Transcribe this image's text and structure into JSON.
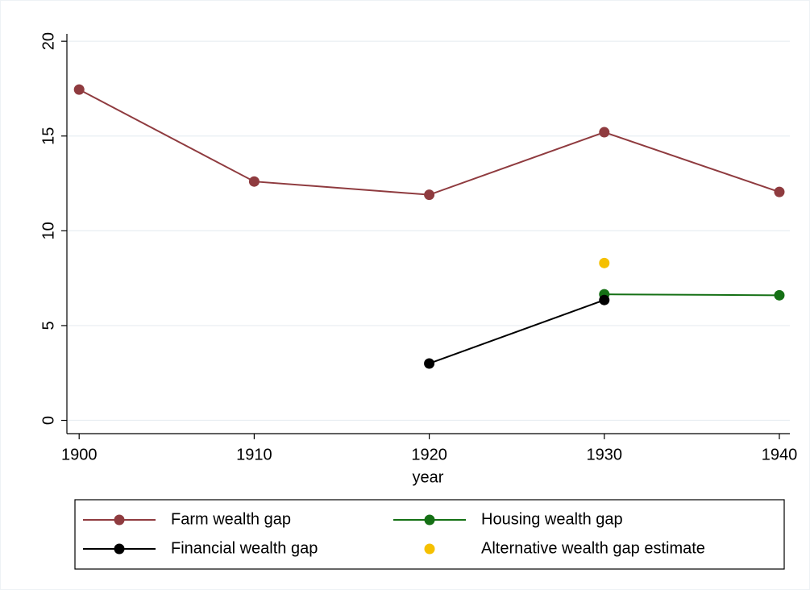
{
  "chart_data": {
    "type": "line",
    "x_label": "year",
    "x": [
      1900,
      1910,
      1920,
      1930,
      1940
    ],
    "xlim": [
      1899.3,
      1940.6
    ],
    "xticks": [
      1900,
      1910,
      1920,
      1930,
      1940
    ],
    "ylim": [
      -0.7,
      20.9
    ],
    "yticks": [
      0,
      5,
      10,
      15,
      20
    ],
    "grid": true,
    "legend": "bottom",
    "series": [
      {
        "name": "Farm wealth gap",
        "color": "#8f3b3f",
        "values": [
          17.45,
          12.6,
          11.9,
          15.2,
          12.05
        ],
        "lines": true
      },
      {
        "name": "Housing wealth gap",
        "color": "#157015",
        "values": [
          null,
          null,
          null,
          6.65,
          6.6
        ],
        "lines": true
      },
      {
        "name": "Financial wealth gap",
        "color": "#000000",
        "values": [
          null,
          null,
          3.0,
          6.35,
          null
        ],
        "lines": true
      },
      {
        "name": "Alternative wealth gap estimate",
        "color": "#f5c000",
        "values": [
          null,
          null,
          null,
          8.3,
          null
        ],
        "lines": false
      }
    ]
  }
}
